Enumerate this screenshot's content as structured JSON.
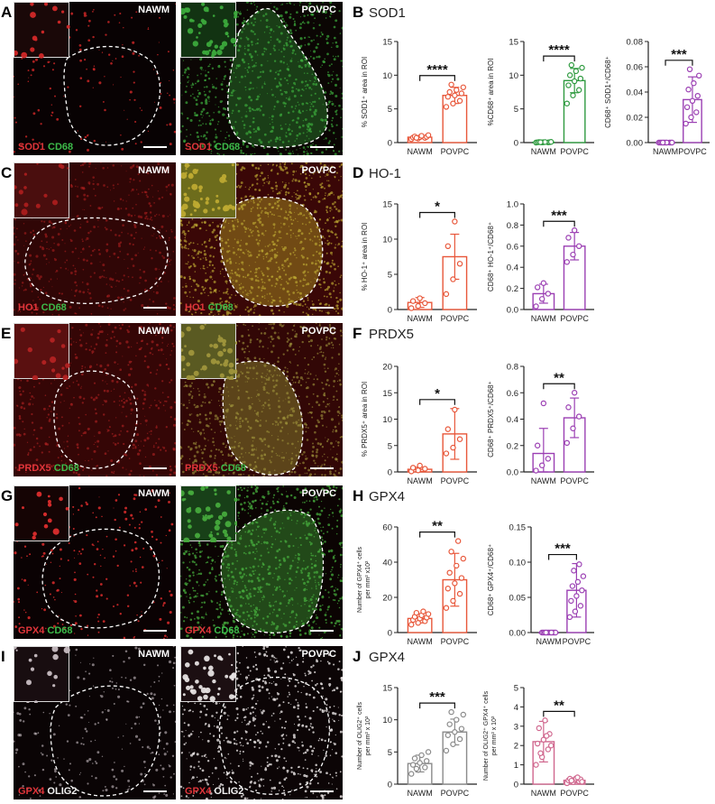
{
  "panels": [
    {
      "letter": "A",
      "left": {
        "label": "NAWM",
        "theme": "sod_nawm"
      },
      "right": {
        "label": "POVPC",
        "theme": "sod_povpc"
      },
      "stain": [
        "SOD1",
        "CD68"
      ],
      "stain_colors": [
        "#e0353a",
        "#3dbb4a"
      ]
    },
    {
      "letter": "C",
      "left": {
        "label": "NAWM",
        "theme": "ho_nawm"
      },
      "right": {
        "label": "POVPC",
        "theme": "ho_povpc"
      },
      "stain": [
        "HO1",
        "CD68"
      ],
      "stain_colors": [
        "#e0353a",
        "#3dbb4a"
      ]
    },
    {
      "letter": "E",
      "left": {
        "label": "NAWM",
        "theme": "prdx_nawm"
      },
      "right": {
        "label": "POVPC",
        "theme": "prdx_povpc"
      },
      "stain": [
        "PRDX5",
        "CD68"
      ],
      "stain_colors": [
        "#e0353a",
        "#3dbb4a"
      ]
    },
    {
      "letter": "G",
      "left": {
        "label": "NAWM",
        "theme": "gpx_nawm"
      },
      "right": {
        "label": "POVPC",
        "theme": "gpx_povpc"
      },
      "stain": [
        "GPX4",
        "CD68"
      ],
      "stain_colors": [
        "#e0353a",
        "#3dbb4a"
      ]
    },
    {
      "letter": "I",
      "left": {
        "label": "NAWM",
        "theme": "olig_nawm"
      },
      "right": {
        "label": "POVPC",
        "theme": "olig_povpc"
      },
      "stain": [
        "GPX4",
        "OLIG2"
      ],
      "stain_colors": [
        "#e0353a",
        "#f2f2f2"
      ]
    }
  ],
  "sections": [
    {
      "letter": "B",
      "name": "SOD1"
    },
    {
      "letter": "D",
      "name": "HO-1"
    },
    {
      "letter": "F",
      "name": "PRDX5"
    },
    {
      "letter": "H",
      "name": "GPX4"
    },
    {
      "letter": "J",
      "name": "GPX4"
    }
  ],
  "colors": {
    "red": "#e8573a",
    "green": "#2e9a3f",
    "purple": "#9b3fb3",
    "pink": "#d0678e",
    "grey": "#8a8a8a"
  },
  "chart_data": [
    {
      "id": "B1",
      "type": "bar",
      "categories": [
        "NAWM",
        "POVPC"
      ],
      "values": [
        0.8,
        7.0
      ],
      "sd": [
        0.2,
        1.2
      ],
      "ylim": [
        0,
        15
      ],
      "yticks": [
        0,
        5,
        10,
        15
      ],
      "ylabel": "% SOD1⁺ area in ROI",
      "sig": "****",
      "color": "red",
      "points": [
        [
          0.5,
          0.6,
          0.7,
          0.75,
          0.8,
          0.85,
          0.9,
          1.0,
          1.1,
          0.7
        ],
        [
          5.3,
          5.8,
          6.2,
          6.8,
          7.0,
          7.3,
          7.5,
          7.8,
          8.2,
          8.6
        ]
      ]
    },
    {
      "id": "B2",
      "type": "bar",
      "categories": [
        "NAWM",
        "POVPC"
      ],
      "values": [
        0.05,
        9.2
      ],
      "sd": [
        0.03,
        1.8
      ],
      "ylim": [
        0,
        15
      ],
      "yticks": [
        0,
        5,
        10,
        15
      ],
      "ylabel": "%CD68⁺ area in ROI",
      "sig": "****",
      "color": "green",
      "points": [
        [
          0,
          0.02,
          0.03,
          0.04,
          0.05,
          0.06,
          0.07,
          0.08,
          0.1,
          0.05
        ],
        [
          5.8,
          7.0,
          7.8,
          8.5,
          9.1,
          9.5,
          10.0,
          10.6,
          11.1,
          11.5
        ]
      ]
    },
    {
      "id": "B3",
      "type": "bar",
      "categories": [
        "NAWM",
        "POVPC"
      ],
      "values": [
        0.0,
        0.034
      ],
      "sd": [
        0.0,
        0.018
      ],
      "ylim": [
        0,
        0.08
      ],
      "yticks": [
        0,
        0.02,
        0.04,
        0.06,
        0.08
      ],
      "ylabel": "CD68⁺ SOD1⁺/CD68⁺",
      "sig": "***",
      "color": "purple",
      "decimals": 2,
      "points": [
        [
          0,
          0,
          0,
          0,
          0,
          0,
          0,
          0,
          0,
          0
        ],
        [
          0.015,
          0.02,
          0.024,
          0.028,
          0.033,
          0.037,
          0.042,
          0.047,
          0.053,
          0.058
        ]
      ]
    },
    {
      "id": "D1",
      "type": "bar",
      "categories": [
        "NAWM",
        "POVPC"
      ],
      "values": [
        1.0,
        7.5
      ],
      "sd": [
        0.7,
        3.2
      ],
      "ylim": [
        0,
        15
      ],
      "yticks": [
        0,
        5,
        10,
        15
      ],
      "ylabel": "% HO-1⁺ area in ROI",
      "sig": "*",
      "color": "red",
      "points": [
        [
          0.2,
          0.5,
          0.9,
          1.2,
          1.6
        ],
        [
          2.2,
          4.3,
          6.5,
          9.0,
          12.5
        ]
      ]
    },
    {
      "id": "D2",
      "type": "bar",
      "categories": [
        "NAWM",
        "POVPC"
      ],
      "values": [
        0.15,
        0.6
      ],
      "sd": [
        0.09,
        0.13
      ],
      "ylim": [
        0,
        1.0
      ],
      "yticks": [
        0,
        0.2,
        0.4,
        0.6,
        0.8,
        1.0
      ],
      "ylabel": "CD68⁺ HO-1⁺/CD68⁺",
      "sig": "***",
      "color": "purple",
      "decimals": 1,
      "points": [
        [
          0.03,
          0.1,
          0.15,
          0.21,
          0.25
        ],
        [
          0.45,
          0.52,
          0.6,
          0.68,
          0.75
        ]
      ]
    },
    {
      "id": "F1",
      "type": "bar",
      "categories": [
        "NAWM",
        "POVPC"
      ],
      "values": [
        0.5,
        7.2
      ],
      "sd": [
        0.4,
        4.8
      ],
      "ylim": [
        0,
        20
      ],
      "yticks": [
        0,
        5,
        10,
        15,
        20
      ],
      "ylabel": "% PRDX5⁺ area in ROI",
      "sig": "*",
      "color": "red",
      "points": [
        [
          0.1,
          0.3,
          0.6,
          0.8,
          1.2
        ],
        [
          3.5,
          4.6,
          6.2,
          8.1,
          11.8
        ]
      ]
    },
    {
      "id": "F2",
      "type": "bar",
      "categories": [
        "NAWM",
        "POVPC"
      ],
      "values": [
        0.14,
        0.41
      ],
      "sd": [
        0.19,
        0.15
      ],
      "ylim": [
        0,
        0.8
      ],
      "yticks": [
        0,
        0.2,
        0.4,
        0.6,
        0.8
      ],
      "ylabel": "CD68⁺ PRDX5⁺/CD68⁺",
      "sig": "**",
      "color": "purple",
      "decimals": 1,
      "points": [
        [
          0.01,
          0.05,
          0.1,
          0.2,
          0.52
        ],
        [
          0.22,
          0.33,
          0.42,
          0.49,
          0.6
        ]
      ]
    },
    {
      "id": "H1",
      "type": "bar",
      "categories": [
        "NAWM",
        "POVPC"
      ],
      "values": [
        8.0,
        30.0
      ],
      "sd": [
        2.5,
        15.0
      ],
      "ylim": [
        0,
        60
      ],
      "yticks": [
        0,
        20,
        40,
        60
      ],
      "ylabel": "Number of GPX4⁺ cells per mm² x10²",
      "sig": "**",
      "color": "red",
      "points": [
        [
          4.5,
          5.5,
          6.5,
          7.2,
          8.0,
          8.5,
          9.0,
          9.8,
          10.5,
          11.2,
          12.0
        ],
        [
          14,
          18,
          22,
          25,
          28,
          31,
          34,
          38,
          42,
          46,
          52
        ]
      ]
    },
    {
      "id": "H2",
      "type": "bar",
      "categories": [
        "NAWM",
        "POVPC"
      ],
      "values": [
        0.0,
        0.06
      ],
      "sd": [
        0.0,
        0.038
      ],
      "ylim": [
        0,
        0.15
      ],
      "yticks": [
        0,
        0.05,
        0.1,
        0.15
      ],
      "ylabel": "CD68⁺ GPX4⁺/CD68⁺",
      "sig": "***",
      "color": "purple",
      "decimals": 2,
      "points": [
        [
          0,
          0,
          0,
          0,
          0,
          0,
          0,
          0,
          0,
          0,
          0
        ],
        [
          0.022,
          0.03,
          0.038,
          0.045,
          0.052,
          0.06,
          0.066,
          0.072,
          0.08,
          0.088,
          0.097
        ]
      ]
    },
    {
      "id": "J1",
      "type": "bar",
      "categories": [
        "NAWM",
        "POVPC"
      ],
      "values": [
        3.2,
        8.1
      ],
      "sd": [
        1.3,
        2.0
      ],
      "ylim": [
        0,
        15
      ],
      "yticks": [
        0,
        5,
        10,
        15
      ],
      "ylabel": "Number of OLIG2⁺ cells per mm² x 10²",
      "sig": "***",
      "color": "grey",
      "points": [
        [
          1.6,
          2.2,
          2.6,
          3.0,
          3.3,
          3.6,
          4.0,
          4.5,
          5.0,
          2.4
        ],
        [
          5.2,
          6.2,
          7.0,
          7.6,
          8.1,
          8.6,
          9.3,
          10.0,
          10.8,
          11.2
        ]
      ]
    },
    {
      "id": "J2",
      "type": "bar",
      "categories": [
        "NAWM",
        "POVPC"
      ],
      "values": [
        2.2,
        0.2
      ],
      "sd": [
        1.05,
        0.12
      ],
      "ylim": [
        0,
        5
      ],
      "yticks": [
        0,
        1,
        2,
        3,
        4,
        5
      ],
      "ylabel": "Number of OLIG2⁺ GPX4⁺ cells per mm² x 10²",
      "sig": "**",
      "color": "pink",
      "points": [
        [
          1.0,
          1.4,
          1.8,
          2.1,
          2.3,
          2.6,
          2.9,
          3.3,
          2.0,
          1.6,
          2.5
        ],
        [
          0.05,
          0.1,
          0.15,
          0.2,
          0.22,
          0.25,
          0.28,
          0.3,
          0.12,
          0.18,
          0.35
        ]
      ]
    }
  ]
}
